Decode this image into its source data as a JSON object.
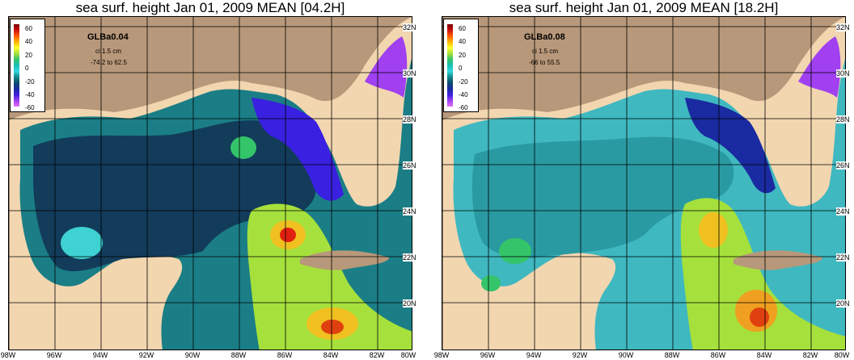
{
  "panels": [
    {
      "title": "sea surf. height    Jan 01, 2009 MEAN   [04.2H]",
      "model": "GLBa0.04",
      "ci": "ci 1.5 cm",
      "range": "-74.2 to 62.5"
    },
    {
      "title": "sea surf. height    Jan 01, 2009 MEAN   [18.2H]",
      "model": "GLBa0.08",
      "ci": "ci 1.5 cm",
      "range": "-66 to 55.5"
    }
  ],
  "legend": {
    "ticks": [
      "60",
      "40",
      "20",
      "0",
      "-20",
      "-40",
      "-60"
    ],
    "max": 60,
    "min": -60
  },
  "latitudes": [
    "32N",
    "30N",
    "28N",
    "26N",
    "24N",
    "22N",
    "20N"
  ],
  "longitudes": [
    "98W",
    "96W",
    "94W",
    "92W",
    "90W",
    "88W",
    "86W",
    "84W",
    "82W",
    "80W"
  ],
  "colors": {
    "land": "#b8987a",
    "shelf": "#f2d6b0",
    "grid": "#000000",
    "low": "#3a20e0",
    "deep": "#123c5a",
    "mid": "#1b7e86",
    "cyan": "#3fd2d2",
    "high": "#f0c020",
    "peak": "#e02010"
  }
}
